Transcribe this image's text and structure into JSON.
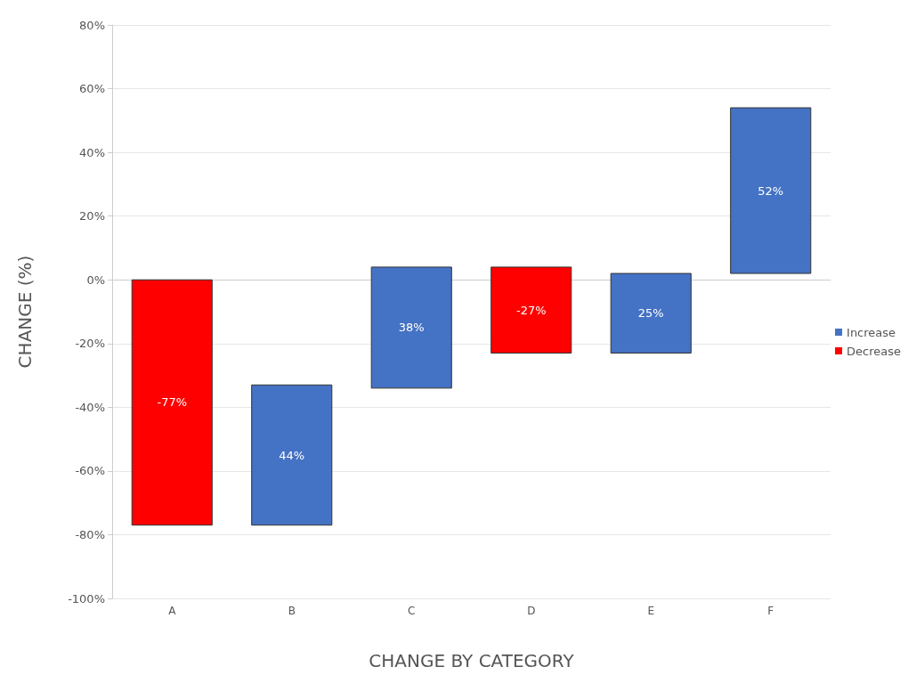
{
  "chart_data": {
    "type": "bar",
    "xlabel": "CHANGE BY CATEGORY",
    "ylabel": "CHANGE (%)",
    "categories": [
      "A",
      "B",
      "C",
      "D",
      "E",
      "F"
    ],
    "series": [
      {
        "name": "Increase",
        "color": "#4472c4",
        "values": [
          null,
          44,
          38,
          null,
          25,
          52
        ],
        "base": [
          null,
          -77,
          -34,
          null,
          -23,
          2
        ],
        "value_labels": [
          null,
          "44%",
          "38%",
          null,
          "25%",
          "52%"
        ]
      },
      {
        "name": "Decrease",
        "color": "#ff0000",
        "values": [
          -77,
          null,
          null,
          -27,
          null,
          null
        ],
        "base": [
          0,
          null,
          null,
          4,
          null,
          null
        ],
        "value_labels": [
          "-77%",
          null,
          null,
          "-27%",
          null,
          null
        ]
      }
    ],
    "ylim": [
      -100,
      80
    ],
    "yticks": [
      {
        "value": -100,
        "label": "-100%"
      },
      {
        "value": -80,
        "label": "-80%"
      },
      {
        "value": -60,
        "label": "-60%"
      },
      {
        "value": -40,
        "label": "-40%"
      },
      {
        "value": -20,
        "label": "-20%"
      },
      {
        "value": 0,
        "label": "0%"
      },
      {
        "value": 20,
        "label": "20%"
      },
      {
        "value": 40,
        "label": "40%"
      },
      {
        "value": 60,
        "label": "60%"
      },
      {
        "value": 80,
        "label": "80%"
      }
    ],
    "grid": "y",
    "legend": "right"
  }
}
